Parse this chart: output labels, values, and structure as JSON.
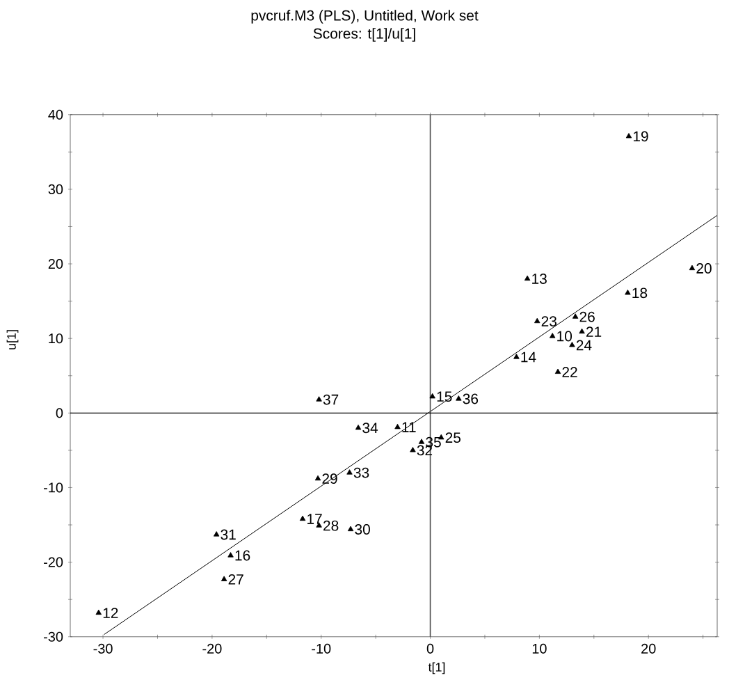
{
  "chart_data": {
    "type": "scatter",
    "title": "pvcruf.M3 (PLS), Untitled, Work set",
    "subtitle": "Scores: t[1]/u[1]",
    "xlabel": "t[1]",
    "ylabel": "u[1]",
    "xlim": [
      -33,
      26.3
    ],
    "ylim": [
      -30,
      40
    ],
    "xticks": [
      -30,
      {
        "value": -25,
        "label": null
      },
      -20,
      {
        "value": -15,
        "label": null
      },
      -10,
      {
        "value": -5,
        "label": null
      },
      0,
      {
        "value": 5,
        "label": null
      },
      10,
      {
        "value": 15,
        "label": null
      },
      20,
      {
        "value": 25,
        "label": null
      }
    ],
    "yticks": [
      -30,
      {
        "value": -25,
        "label": null
      },
      -20,
      {
        "value": -15,
        "label": null
      },
      -10,
      {
        "value": -5,
        "label": null
      },
      0,
      {
        "value": 5,
        "label": null
      },
      10,
      {
        "value": 15,
        "label": null
      },
      20,
      {
        "value": 25,
        "label": null
      },
      30,
      {
        "value": 35,
        "label": null
      },
      40
    ],
    "grid": false,
    "ref_lines": [
      {
        "axis": "x",
        "value": 0,
        "label": null
      },
      {
        "axis": "y",
        "value": 0,
        "label": null
      }
    ],
    "series": [
      {
        "color": "#000000",
        "marker": "triangle",
        "x": [
          18.2,
          24.0,
          8.9,
          18.1,
          9.8,
          13.3,
          11.2,
          13.9,
          13.0,
          7.9,
          11.7,
          -10.2,
          -6.6,
          -10.3,
          -7.4,
          -11.7,
          -10.2,
          -7.3,
          -19.6,
          -18.3,
          -18.9,
          -30.4,
          0.2,
          2.6,
          -3.0,
          -0.8,
          1.0,
          -1.6
        ],
        "values": [
          37.1,
          19.4,
          18.0,
          16.1,
          12.3,
          12.9,
          10.3,
          10.9,
          9.1,
          7.5,
          5.5,
          1.8,
          -2.0,
          -8.8,
          -8.0,
          -14.2,
          -15.1,
          -15.6,
          -16.3,
          -19.1,
          -22.3,
          -26.8,
          2.2,
          1.9,
          -1.9,
          -3.9,
          -3.3,
          -5.0
        ]
      },
      {
        "type": "line",
        "color": "#000000",
        "x": [
          -29.9,
          26.3
        ],
        "values": [
          -29.7,
          26.5
        ]
      }
    ],
    "annotations": [
      {
        "text": "19",
        "x": 18.2,
        "y": 37.1
      },
      {
        "text": "20",
        "x": 24.0,
        "y": 19.4
      },
      {
        "text": "13",
        "x": 8.9,
        "y": 18.0
      },
      {
        "text": "18",
        "x": 18.1,
        "y": 16.1
      },
      {
        "text": "23",
        "x": 9.8,
        "y": 12.3
      },
      {
        "text": "26",
        "x": 13.3,
        "y": 12.9
      },
      {
        "text": "10",
        "x": 11.2,
        "y": 10.3
      },
      {
        "text": "21",
        "x": 13.9,
        "y": 10.9
      },
      {
        "text": "24",
        "x": 13.0,
        "y": 9.1
      },
      {
        "text": "14",
        "x": 7.9,
        "y": 7.5
      },
      {
        "text": "22",
        "x": 11.7,
        "y": 5.5
      },
      {
        "text": "37",
        "x": -10.2,
        "y": 1.8
      },
      {
        "text": "34",
        "x": -6.6,
        "y": -2.0
      },
      {
        "text": "29",
        "x": -10.3,
        "y": -8.8
      },
      {
        "text": "33",
        "x": -7.4,
        "y": -8.0
      },
      {
        "text": "17",
        "x": -11.7,
        "y": -14.2
      },
      {
        "text": "28",
        "x": -10.2,
        "y": -15.1
      },
      {
        "text": "30",
        "x": -7.3,
        "y": -15.6
      },
      {
        "text": "31",
        "x": -19.6,
        "y": -16.3
      },
      {
        "text": "16",
        "x": -18.3,
        "y": -19.1
      },
      {
        "text": "27",
        "x": -18.9,
        "y": -22.3
      },
      {
        "text": "12",
        "x": -30.4,
        "y": -26.8
      },
      {
        "text": "15",
        "x": 0.2,
        "y": 2.2
      },
      {
        "text": "36",
        "x": 2.6,
        "y": 1.9
      },
      {
        "text": "11",
        "x": -3.0,
        "y": -1.9
      },
      {
        "text": "35",
        "x": -0.8,
        "y": -3.9
      },
      {
        "text": "25",
        "x": 1.0,
        "y": -3.3
      },
      {
        "text": "32",
        "x": -1.6,
        "y": -5.0
      }
    ]
  }
}
